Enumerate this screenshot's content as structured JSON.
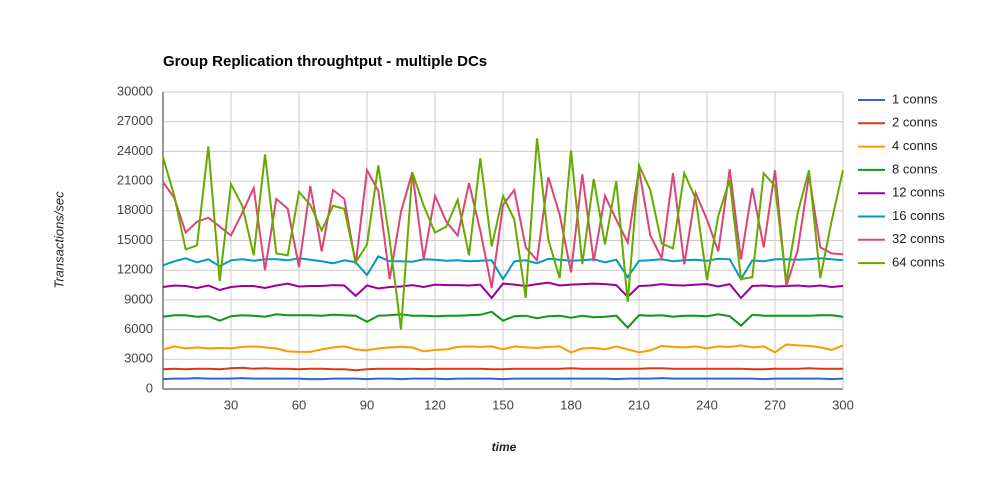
{
  "chart_data": {
    "type": "line",
    "title": "Group Replication throughtput - multiple DCs",
    "x_label": "time",
    "y_label": "Transactions/sec",
    "xlim": [
      0,
      300
    ],
    "xticks": [
      30,
      60,
      90,
      120,
      150,
      180,
      210,
      240,
      270,
      300
    ],
    "ylim": [
      0,
      30000
    ],
    "yticks": [
      0,
      3000,
      6000,
      9000,
      12000,
      15000,
      18000,
      21000,
      24000,
      27000,
      30000
    ],
    "grid": true,
    "legend": "right",
    "x": [
      0,
      5,
      10,
      15,
      20,
      25,
      30,
      35,
      40,
      45,
      50,
      55,
      60,
      65,
      70,
      75,
      80,
      85,
      90,
      95,
      100,
      105,
      110,
      115,
      120,
      125,
      130,
      135,
      140,
      145,
      150,
      155,
      160,
      165,
      170,
      175,
      180,
      185,
      190,
      195,
      200,
      205,
      210,
      215,
      220,
      225,
      230,
      235,
      240,
      245,
      250,
      255,
      260,
      265,
      270,
      275,
      280,
      285,
      290,
      295,
      300
    ],
    "series": [
      {
        "name": "1 conns",
        "color": "#3366cc",
        "values": [
          1000,
          1050,
          1050,
          1100,
          1050,
          1050,
          1050,
          1100,
          1050,
          1050,
          1050,
          1050,
          1050,
          1000,
          1000,
          1050,
          1050,
          1050,
          1000,
          1050,
          1050,
          1000,
          1050,
          1050,
          1050,
          1000,
          1050,
          1050,
          1050,
          1050,
          1000,
          1050,
          1050,
          1050,
          1050,
          1050,
          1050,
          1050,
          1050,
          1050,
          1000,
          1050,
          1050,
          1050,
          1100,
          1050,
          1050,
          1050,
          1050,
          1050,
          1050,
          1050,
          1050,
          1000,
          1050,
          1050,
          1050,
          1050,
          1050,
          1000,
          1050
        ]
      },
      {
        "name": "2 conns",
        "color": "#dc3912",
        "values": [
          2000,
          2050,
          2000,
          2050,
          2050,
          2000,
          2100,
          2150,
          2050,
          2100,
          2050,
          2050,
          2000,
          2050,
          2050,
          2000,
          2000,
          1900,
          2000,
          2050,
          2050,
          2050,
          2050,
          2000,
          2050,
          2050,
          2050,
          2050,
          2050,
          2000,
          2000,
          2050,
          2050,
          2050,
          2050,
          2050,
          2100,
          2050,
          2050,
          2050,
          2050,
          2050,
          2050,
          2100,
          2100,
          2050,
          2050,
          2050,
          2050,
          2050,
          2050,
          2050,
          2000,
          2000,
          2050,
          2050,
          2050,
          2100,
          2050,
          2050,
          2050
        ]
      },
      {
        "name": "4 conns",
        "color": "#ff9900",
        "values": [
          4000,
          4300,
          4100,
          4200,
          4100,
          4150,
          4100,
          4250,
          4300,
          4200,
          4100,
          3800,
          3750,
          3750,
          4000,
          4200,
          4300,
          4000,
          3900,
          4100,
          4200,
          4250,
          4200,
          3800,
          3950,
          4000,
          4250,
          4300,
          4250,
          4300,
          4000,
          4300,
          4200,
          4150,
          4250,
          4300,
          3700,
          4100,
          4150,
          4000,
          4300,
          4000,
          3700,
          3900,
          4350,
          4250,
          4200,
          4300,
          4100,
          4300,
          4250,
          4400,
          4200,
          4300,
          3700,
          4500,
          4400,
          4350,
          4200,
          3950,
          4400
        ]
      },
      {
        "name": "8 conns",
        "color": "#109618",
        "values": [
          7300,
          7450,
          7450,
          7300,
          7350,
          6900,
          7350,
          7450,
          7400,
          7300,
          7550,
          7450,
          7450,
          7450,
          7400,
          7500,
          7450,
          7400,
          6800,
          7400,
          7450,
          7550,
          7400,
          7400,
          7350,
          7400,
          7400,
          7450,
          7500,
          7800,
          6900,
          7350,
          7400,
          7150,
          7350,
          7400,
          7200,
          7400,
          7250,
          7300,
          7400,
          6200,
          7450,
          7400,
          7450,
          7300,
          7400,
          7400,
          7350,
          7550,
          7350,
          6400,
          7500,
          7400,
          7400,
          7400,
          7400,
          7400,
          7450,
          7450,
          7300
        ]
      },
      {
        "name": "12 conns",
        "color": "#990099",
        "values": [
          10300,
          10450,
          10400,
          10200,
          10450,
          10000,
          10300,
          10400,
          10400,
          10200,
          10450,
          10650,
          10350,
          10400,
          10400,
          10500,
          10450,
          9400,
          10450,
          10150,
          10300,
          10350,
          10500,
          10300,
          10550,
          10500,
          10500,
          10450,
          10550,
          9200,
          10650,
          10550,
          10400,
          10600,
          10750,
          10450,
          10550,
          10600,
          10650,
          10600,
          10500,
          9300,
          10400,
          10450,
          10600,
          10500,
          10450,
          10550,
          10600,
          10350,
          10600,
          9200,
          10400,
          10450,
          10350,
          10400,
          10450,
          10350,
          10450,
          10300,
          10400
        ]
      },
      {
        "name": "16 conns",
        "color": "#0099c6",
        "values": [
          12500,
          12900,
          13200,
          12800,
          13100,
          12400,
          13000,
          13100,
          12950,
          13100,
          13100,
          13000,
          13200,
          13050,
          12900,
          12700,
          13000,
          12800,
          11500,
          13400,
          12900,
          12900,
          12850,
          13100,
          13050,
          12950,
          13000,
          12900,
          12950,
          13000,
          11100,
          12900,
          13000,
          12700,
          13150,
          13050,
          12950,
          13000,
          13100,
          12800,
          13050,
          11300,
          12950,
          13000,
          13100,
          12900,
          13000,
          13050,
          12950,
          13150,
          13100,
          11100,
          13000,
          12900,
          13100,
          13100,
          13050,
          13100,
          13200,
          13100,
          13000
        ]
      },
      {
        "name": "32 conns",
        "color": "#dd4477",
        "values": [
          20900,
          19300,
          15800,
          16900,
          17300,
          16400,
          15500,
          17800,
          20300,
          12000,
          19200,
          18200,
          12300,
          20500,
          13900,
          20100,
          19200,
          12600,
          22100,
          20000,
          11100,
          17900,
          21900,
          13100,
          19500,
          16900,
          15500,
          20800,
          16000,
          10200,
          18600,
          20100,
          14300,
          13000,
          21400,
          17600,
          11800,
          21700,
          12900,
          19500,
          17100,
          14800,
          22200,
          15500,
          13200,
          21800,
          12600,
          19800,
          17100,
          13900,
          22200,
          13100,
          20300,
          14300,
          22100,
          10400,
          14000,
          21600,
          14300,
          13700,
          13600
        ]
      },
      {
        "name": "64 conns",
        "color": "#66aa00",
        "values": [
          23400,
          19500,
          14100,
          14500,
          24500,
          10900,
          20700,
          18500,
          13500,
          23700,
          13700,
          13500,
          19900,
          18600,
          16000,
          18500,
          18200,
          12800,
          14600,
          22600,
          15000,
          6000,
          21900,
          18500,
          15800,
          16400,
          19100,
          13500,
          23300,
          14400,
          19500,
          17100,
          9200,
          25300,
          15100,
          11200,
          24100,
          12600,
          21200,
          14600,
          21000,
          8800,
          22600,
          20100,
          14700,
          14200,
          21800,
          19200,
          11000,
          17500,
          21100,
          11100,
          11300,
          21800,
          20500,
          10800,
          17800,
          22100,
          11200,
          17000,
          22100
        ]
      }
    ]
  }
}
